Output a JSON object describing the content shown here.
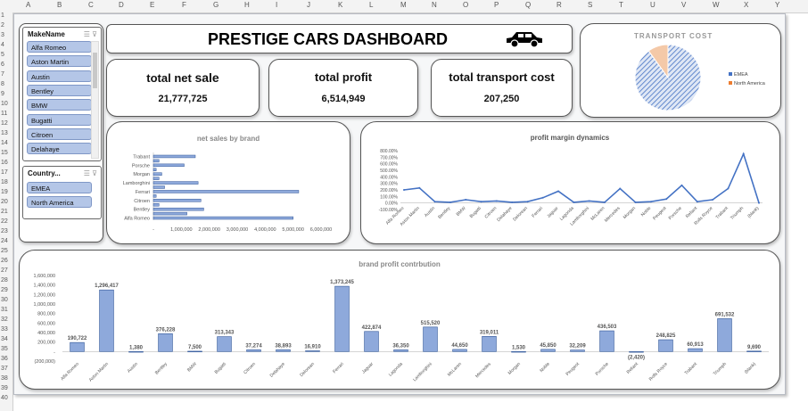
{
  "spreadsheet": {
    "columns": [
      "A",
      "B",
      "C",
      "D",
      "E",
      "F",
      "G",
      "H",
      "I",
      "J",
      "K",
      "L",
      "M",
      "N",
      "O",
      "P",
      "Q",
      "R",
      "S",
      "T",
      "U",
      "V",
      "W",
      "X",
      "Y"
    ],
    "rows": [
      "1",
      "2",
      "3",
      "4",
      "5",
      "6",
      "7",
      "8",
      "9",
      "10",
      "11",
      "12",
      "13",
      "14",
      "15",
      "16",
      "17",
      "18",
      "19",
      "20",
      "21",
      "22",
      "23",
      "24",
      "25",
      "26",
      "27",
      "28",
      "29",
      "30",
      "31",
      "32",
      "33",
      "34",
      "35",
      "36",
      "37",
      "38",
      "39",
      "40"
    ]
  },
  "dashboard": {
    "title": "PRESTIGE CARS DASHBOARD",
    "title_icon": "car-icon"
  },
  "kpis": {
    "net_sale_label_prefix": "total net ",
    "net_sale_label_emph": "sale",
    "net_sale_value": "21,777,725",
    "profit_label": "total profit",
    "profit_value": "6,514,949",
    "transport_label": "total transport cost",
    "transport_value": "207,250"
  },
  "slicers": {
    "make": {
      "header": "MakeName",
      "items": [
        "Alfa Romeo",
        "Aston Martin",
        "Austin",
        "Bentley",
        "BMW",
        "Bugatti",
        "Citroen",
        "Delahaye"
      ]
    },
    "country": {
      "header": "Country...",
      "items": [
        "EMEA",
        "North America"
      ]
    }
  },
  "colors": {
    "bar": "#8ea9db",
    "bar_stroke": "#2f5597",
    "line": "#4472c4",
    "emea": "#4472c4",
    "north_america": "#ed7d31"
  },
  "chart_data": [
    {
      "id": "transport",
      "type": "pie",
      "title": "TRANSPORT COST",
      "labels": [
        "EMEA",
        "North America"
      ],
      "values": [
        90,
        10
      ],
      "legend": "right"
    },
    {
      "id": "netsales",
      "type": "bar",
      "orientation": "horizontal",
      "title": "net sales by brand",
      "categories": [
        "Alfa Romeo",
        "",
        "Bentley",
        "",
        "Citroen",
        "",
        "Ferrari",
        "",
        "Lamborghini",
        "",
        "Morgan",
        "",
        "Porsche",
        "",
        "Trabant"
      ],
      "tick_labels": [
        "Alfa Romeo",
        "Bentley",
        "Citroen",
        "Ferrari",
        "Lamborghini",
        "Morgan",
        "Porsche",
        "Trabant"
      ],
      "values": [
        5000000,
        1200000,
        1800000,
        200000,
        1700000,
        100000,
        5200000,
        400000,
        1600000,
        200000,
        300000,
        100000,
        1100000,
        200000,
        1500000
      ],
      "xticks": [
        0,
        1000000,
        2000000,
        3000000,
        4000000,
        5000000,
        6000000
      ],
      "xtick_labels": [
        "-",
        "1,000,000",
        "2,000,000",
        "3,000,000",
        "4,000,000",
        "5,000,000",
        "6,000,000"
      ],
      "xlim": [
        0,
        6000000
      ]
    },
    {
      "id": "margin",
      "type": "line",
      "title": "profit margin dynamics",
      "categories": [
        "Alfa Romeo",
        "Aston Martin",
        "Austin",
        "Bentley",
        "BMW",
        "Bugatti",
        "Citroen",
        "Delahaye",
        "Delorean",
        "Ferrari",
        "Jaguar",
        "Lagonda",
        "Lamborghini",
        "McLaren",
        "Mercedes",
        "Morgan",
        "Noble",
        "Peugeot",
        "Porsche",
        "Reliant",
        "Rolls Royce",
        "Trabant",
        "Triumph",
        "(blank)"
      ],
      "values": [
        200,
        230,
        20,
        10,
        50,
        20,
        30,
        10,
        20,
        80,
        180,
        10,
        30,
        10,
        220,
        10,
        20,
        60,
        270,
        20,
        50,
        220,
        750,
        0
      ],
      "yticks": [
        -100,
        0,
        100,
        200,
        300,
        400,
        500,
        600,
        700,
        800
      ],
      "ytick_labels": [
        "-100.00%",
        "0.00%",
        "100.00%",
        "200.00%",
        "300.00%",
        "400.00%",
        "500.00%",
        "600.00%",
        "700.00%",
        "800.00%"
      ],
      "ylim": [
        -100,
        800
      ]
    },
    {
      "id": "contribution",
      "type": "bar",
      "title": "brand profit contrbution",
      "categories": [
        "Alfa Romeo",
        "Aston Martin",
        "Austin",
        "Bentley",
        "BMW",
        "Bugatti",
        "Citroen",
        "Delahaye",
        "Delorean",
        "Ferrari",
        "Jaguar",
        "Lagonda",
        "Lamborghini",
        "McLaren",
        "Mercedes",
        "Morgan",
        "Noble",
        "Peugeot",
        "Porsche",
        "Reliant",
        "Rolls Royce",
        "Trabant",
        "Triumph",
        "(blank)"
      ],
      "values": [
        190722,
        1296417,
        1380,
        376228,
        7500,
        313343,
        37274,
        38893,
        16910,
        1373245,
        422874,
        36350,
        515520,
        44650,
        319011,
        1530,
        45850,
        32209,
        436503,
        -2420,
        248825,
        60913,
        691532,
        9690
      ],
      "value_labels": [
        "190,722",
        "1,296,417",
        "1,380",
        "376,228",
        "7,500",
        "313,343",
        "37,274",
        "38,893",
        "16,910",
        "1,373,245",
        "422,874",
        "36,350",
        "515,520",
        "44,650",
        "319,011",
        "1,530",
        "45,850",
        "32,209",
        "436,503",
        "(2,420)",
        "248,825",
        "60,913",
        "691,532",
        "9,690"
      ],
      "yticks": [
        -200000,
        0,
        200000,
        400000,
        600000,
        800000,
        1000000,
        1200000,
        1400000,
        1600000
      ],
      "ytick_labels": [
        "(200,000)",
        "-",
        "200,000",
        "400,000",
        "600,000",
        "800,000",
        "1,000,000",
        "1,200,000",
        "1,400,000",
        "1,600,000"
      ],
      "ylim": [
        -200000,
        1600000
      ]
    }
  ]
}
